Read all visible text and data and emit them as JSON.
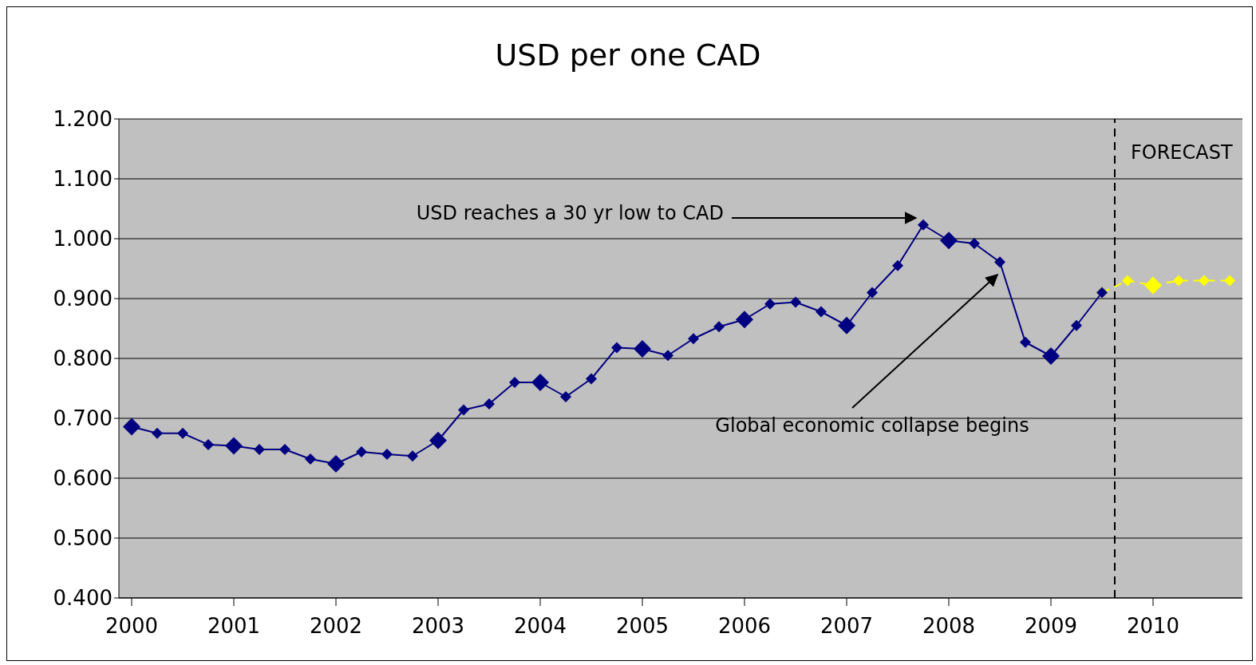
{
  "chart_data": {
    "type": "line",
    "title": "USD per one CAD",
    "x": [
      2000,
      2000.25,
      2000.5,
      2000.75,
      2001,
      2001.25,
      2001.5,
      2001.75,
      2002,
      2002.25,
      2002.5,
      2002.75,
      2003,
      2003.25,
      2003.5,
      2003.75,
      2004,
      2004.25,
      2004.5,
      2004.75,
      2005,
      2005.25,
      2005.5,
      2005.75,
      2006,
      2006.25,
      2006.5,
      2006.75,
      2007,
      2007.25,
      2007.5,
      2007.75,
      2008,
      2008.25,
      2008.5,
      2008.75,
      2009,
      2009.25,
      2009.5,
      2009.75,
      2010,
      2010.25,
      2010.5,
      2010.75
    ],
    "series": [
      {
        "color": "#000080",
        "line_style": "solid",
        "values": [
          0.686,
          0.675,
          0.675,
          0.656,
          0.654,
          0.648,
          0.648,
          0.632,
          0.624,
          0.644,
          0.64,
          0.637,
          0.663,
          0.714,
          0.724,
          0.76,
          0.76,
          0.736,
          0.766,
          0.818,
          0.816,
          0.805,
          0.833,
          0.853,
          0.865,
          0.891,
          0.894,
          0.878,
          0.855,
          0.91,
          0.955,
          1.023,
          0.997,
          0.992,
          0.961,
          0.827,
          0.804,
          0.855,
          0.91,
          null,
          null,
          null,
          null,
          null
        ]
      },
      {
        "color": "#ffff00",
        "line_style": "dashed",
        "values": [
          null,
          null,
          null,
          null,
          null,
          null,
          null,
          null,
          null,
          null,
          null,
          null,
          null,
          null,
          null,
          null,
          null,
          null,
          null,
          null,
          null,
          null,
          null,
          null,
          null,
          null,
          null,
          null,
          null,
          null,
          null,
          null,
          null,
          null,
          null,
          null,
          null,
          null,
          0.91,
          0.93,
          0.922,
          0.93,
          0.93,
          0.93
        ]
      }
    ],
    "xlim": [
      1999.875,
      2010.875
    ],
    "xticks": [
      2000,
      2001,
      2002,
      2003,
      2004,
      2005,
      2006,
      2007,
      2008,
      2009,
      2010
    ],
    "ylim": [
      0.4,
      1.2
    ],
    "yticks": [
      {
        "value": 0.4,
        "label": "0.400"
      },
      {
        "value": 0.5,
        "label": "0.500"
      },
      {
        "value": 0.6,
        "label": "0.600"
      },
      {
        "value": 0.7,
        "label": "0.700"
      },
      {
        "value": 0.8,
        "label": "0.800"
      },
      {
        "value": 0.9,
        "label": "0.900"
      },
      {
        "value": 1.0,
        "label": "1.000"
      },
      {
        "value": 1.1,
        "label": "1.100"
      },
      {
        "value": 1.2,
        "label": "1.200"
      }
    ],
    "grid": "y",
    "marker": "diamond",
    "legend": false,
    "ref_lines": [
      {
        "axis": "x",
        "value": 2009.625,
        "label": "FORECAST",
        "line_style": "dashed",
        "color": "#000000"
      }
    ],
    "annotations": [
      "USD reaches a 30 yr low to CAD",
      "Global economic collapse begins"
    ]
  }
}
